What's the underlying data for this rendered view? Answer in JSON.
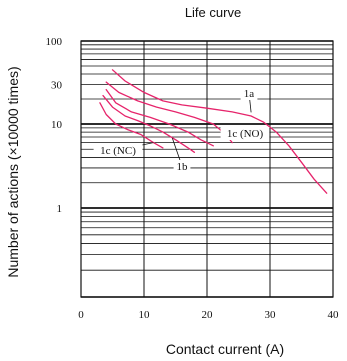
{
  "chart_data": {
    "type": "line",
    "title": "Life curve",
    "xlabel": "Contact current (A)",
    "ylabel": "Number of actions (×10000 times)",
    "xlim": [
      0,
      40
    ],
    "ylim": [
      0.1,
      100
    ],
    "yscale": "log",
    "x_ticks": [
      0,
      10,
      20,
      30,
      40
    ],
    "x_tick_labels": [
      "0",
      "10",
      "20",
      "30",
      "40"
    ],
    "y_tick_values": [
      100,
      30,
      10,
      1
    ],
    "y_tick_labels": [
      "100",
      "30",
      "10",
      "1"
    ],
    "grid": true,
    "curve_color": "#e6246b",
    "series": [
      {
        "name": "1a",
        "x": [
          5,
          7,
          10,
          13,
          16,
          20,
          24,
          27,
          29,
          31,
          33,
          35,
          37,
          39
        ],
        "y": [
          45,
          33,
          24,
          19,
          17,
          15.5,
          14,
          12.5,
          10.5,
          8,
          5.5,
          3.5,
          2.2,
          1.5
        ]
      },
      {
        "name": "1c (NO)",
        "x": [
          4,
          6,
          9,
          12,
          15,
          18,
          21,
          23,
          24
        ],
        "y": [
          32,
          24,
          19,
          16,
          14,
          12,
          10,
          7.5,
          6
        ]
      },
      {
        "name": "",
        "x": [
          4,
          5.5,
          8,
          11,
          14,
          17,
          19,
          21
        ],
        "y": [
          26,
          18,
          14,
          12,
          10,
          8,
          6.5,
          5.5
        ]
      },
      {
        "name": "1b",
        "x": [
          3.5,
          5,
          7,
          9,
          11,
          13,
          15,
          17,
          18
        ],
        "y": [
          22,
          16,
          12.5,
          11,
          9.5,
          8,
          6.5,
          5.2,
          4.6
        ]
      },
      {
        "name": "1c (NC)",
        "x": [
          3,
          4,
          5.5,
          7.5,
          9.5,
          11.5,
          13
        ],
        "y": [
          18,
          13,
          10,
          8.5,
          7.5,
          6,
          5.2
        ]
      }
    ],
    "annotations": [
      {
        "text": "1a",
        "target_series": 0
      },
      {
        "text": "1c (NO)",
        "target_series": 1
      },
      {
        "text": "1c (NC)",
        "target_series": 4
      },
      {
        "text": "1b",
        "target_series": 3
      }
    ]
  }
}
